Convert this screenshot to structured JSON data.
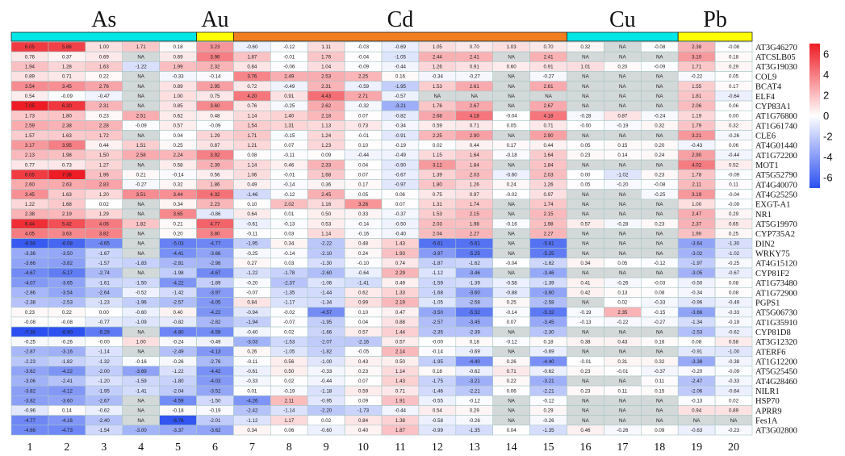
{
  "chart_data": {
    "type": "heatmap",
    "groups": [
      {
        "name": "As",
        "columns": [
          1,
          5
        ],
        "color": "#00e5e5"
      },
      {
        "name": "Au",
        "columns": [
          6,
          6
        ],
        "color": "#ffff00"
      },
      {
        "name": "Cd",
        "columns": [
          7,
          15
        ],
        "color": "#f07d1f"
      },
      {
        "name": "Cu",
        "columns": [
          16,
          18
        ],
        "color": "#00e5e5"
      },
      {
        "name": "Pb",
        "columns": [
          19,
          20
        ],
        "color": "#ffff00"
      }
    ],
    "columns": [
      "1",
      "2",
      "3",
      "4",
      "5",
      "6",
      "7",
      "8",
      "9",
      "10",
      "11",
      "12",
      "13",
      "14",
      "15",
      "16",
      "17",
      "18",
      "19",
      "20"
    ],
    "rows": [
      "AT3G46270",
      "ATCSLB05",
      "AT3G19030",
      "COL9",
      "BCAT4",
      "ELF4",
      "CYP83A1",
      "AT1G76800",
      "AT1G61740",
      "CLE6",
      "AT4G01440",
      "AT1G72200",
      "MOT1",
      "AT5G52790",
      "AT4G40070",
      "AT4G25250",
      "EXGT-A1",
      "NR1",
      "AT5G19970",
      "CYP735A2",
      "DIN2",
      "WRKY75",
      "AT4G15120",
      "CYP81F2",
      "AT1G73480",
      "AT1G72900",
      "PGPS1",
      "AT5G06730",
      "AT1G35910",
      "CYP81D8",
      "AT3G12320",
      "ATERF6",
      "AT1G12200",
      "AT5G25450",
      "AT4G28460",
      "NILR1",
      "HSP70",
      "APRR9",
      "Fes1A",
      "AT3G02800"
    ],
    "values": [
      [
        "6.05",
        "5.86",
        "1.00",
        "1.71",
        "0.18",
        "3.23",
        "-0.60",
        "-0.12",
        "1.11",
        "-0.03",
        "-0.69",
        "1.05",
        "0.70",
        "1.03",
        "0.70",
        "0.32",
        "NA",
        "-0.08",
        "2.38",
        "-0.08"
      ],
      [
        "0.76",
        "0.37",
        "0.69",
        "NA",
        "0.69",
        "3.96",
        "1.87",
        "-0.01",
        "1.76",
        "-0.04",
        "-1.05",
        "2.44",
        "2.41",
        "NA",
        "2.41",
        "NA",
        "NA",
        "NA",
        "3.10",
        "0.18"
      ],
      [
        "1.94",
        "1.28",
        "1.63",
        "-1.22",
        "1.99",
        "2.32",
        "0.84",
        "-0.06",
        "1.04",
        "-0.09",
        "-0.44",
        "1.26",
        "0.91",
        "0.60",
        "0.91",
        "1.01",
        "0.20",
        "-0.09",
        "1.71",
        "0.29"
      ],
      [
        "0.89",
        "0.71",
        "0.22",
        "NA",
        "-0.33",
        "-0.14",
        "3.76",
        "2.49",
        "2.53",
        "2.25",
        "0.16",
        "-0.34",
        "-0.27",
        "NA",
        "-0.27",
        "NA",
        "NA",
        "NA",
        "-0.22",
        "0.05"
      ],
      [
        "3.54",
        "3.45",
        "2.76",
        "NA",
        "0.89",
        "2.95",
        "0.72",
        "-0.49",
        "2.31",
        "-0.59",
        "-1.95",
        "1.53",
        "2.61",
        "NA",
        "2.61",
        "NA",
        "NA",
        "NA",
        "1.55",
        "0.17"
      ],
      [
        "0.54",
        "-0.09",
        "-0.47",
        "NA",
        "1.00",
        "0.75",
        "4.20",
        "0.91",
        "4.43",
        "2.71",
        "-0.57",
        "NA",
        "NA",
        "NA",
        "NA",
        "NA",
        "NA",
        "NA",
        "1.81",
        "-0.64"
      ],
      [
        "7.05",
        "6.20",
        "2.31",
        "NA",
        "0.85",
        "3.60",
        "0.76",
        "-0.25",
        "2.62",
        "-0.32",
        "-3.21",
        "1.76",
        "2.67",
        "NA",
        "2.67",
        "NA",
        "NA",
        "NA",
        "2.06",
        "0.06"
      ],
      [
        "1.73",
        "1.80",
        "0.23",
        "2.51",
        "0.62",
        "0.48",
        "1.14",
        "1.40",
        "2.18",
        "0.07",
        "-0.82",
        "2.68",
        "4.18",
        "-0.04",
        "4.18",
        "-0.28",
        "0.87",
        "-0.24",
        "1.19",
        "0.00"
      ],
      [
        "2.59",
        "2.38",
        "2.28",
        "-0.09",
        "0.57",
        "-0.09",
        "1.54",
        "1.31",
        "1.13",
        "0.73",
        "-0.34",
        "0.59",
        "0.71",
        "0.05",
        "0.71",
        "-0.00",
        "-0.19",
        "0.32",
        "1.79",
        "0.32"
      ],
      [
        "1.57",
        "1.63",
        "1.72",
        "NA",
        "0.04",
        "1.29",
        "1.71",
        "-0.15",
        "1.24",
        "-0.01",
        "-0.91",
        "2.25",
        "2.90",
        "NA",
        "2.90",
        "NA",
        "NA",
        "NA",
        "3.21",
        "-0.26"
      ],
      [
        "3.17",
        "3.95",
        "0.44",
        "1.51",
        "0.25",
        "0.87",
        "1.21",
        "0.07",
        "1.23",
        "0.10",
        "-0.19",
        "0.02",
        "0.44",
        "0.17",
        "0.44",
        "0.05",
        "0.15",
        "0.20",
        "-0.43",
        "0.06"
      ],
      [
        "2.13",
        "1.98",
        "1.50",
        "2.58",
        "2.24",
        "3.92",
        "0.08",
        "-0.11",
        "0.09",
        "-0.44",
        "-0.49",
        "1.15",
        "1.64",
        "-0.18",
        "1.64",
        "0.23",
        "0.14",
        "0.24",
        "2.90",
        "-0.44"
      ],
      [
        "0.77",
        "0.73",
        "1.27",
        "NA",
        "0.58",
        "2.39",
        "1.14",
        "0.46",
        "2.33",
        "0.04",
        "-0.90",
        "3.12",
        "1.84",
        "NA",
        "1.84",
        "NA",
        "NA",
        "NA",
        "4.02",
        "0.52"
      ],
      [
        "6.05",
        "7.36",
        "1.96",
        "0.21",
        "-0.14",
        "0.56",
        "1.06",
        "-0.01",
        "1.68",
        "0.07",
        "-0.67",
        "1.39",
        "2.03",
        "-0.60",
        "2.03",
        "0.00",
        "-1.02",
        "0.23",
        "1.78",
        "-0.09"
      ],
      [
        "2.60",
        "2.63",
        "2.83",
        "-0.27",
        "0.32",
        "1.86",
        "0.49",
        "-0.14",
        "0.36",
        "0.17",
        "-0.97",
        "1.80",
        "1.26",
        "0.24",
        "1.26",
        "0.05",
        "-0.20",
        "-0.08",
        "2.11",
        "0.11"
      ],
      [
        "3.45",
        "1.63",
        "1.20",
        "3.51",
        "3.44",
        "4.32",
        "-1.46",
        "-0.12",
        "2.45",
        "0.05",
        "0.06",
        "0.75",
        "0.97",
        "-0.02",
        "0.97",
        "NA",
        "NA",
        "-0.25",
        "3.19",
        "-0.04"
      ],
      [
        "1.22",
        "1.68",
        "0.02",
        "NA",
        "0.34",
        "2.23",
        "0.10",
        "2.02",
        "1.16",
        "3.26",
        "0.07",
        "1.31",
        "1.74",
        "NA",
        "1.74",
        "NA",
        "NA",
        "NA",
        "1.00",
        "-0.09"
      ],
      [
        "2.38",
        "2.19",
        "1.29",
        "NA",
        "3.65",
        "-0.86",
        "0.64",
        "0.01",
        "0.50",
        "0.33",
        "-0.37",
        "1.53",
        "2.15",
        "NA",
        "2.15",
        "NA",
        "NA",
        "NA",
        "2.47",
        "0.29"
      ],
      [
        "6.44",
        "5.42",
        "4.06",
        "1.82",
        "0.21",
        "4.77",
        "-0.61",
        "-0.13",
        "0.53",
        "-0.14",
        "-0.50",
        "2.03",
        "1.98",
        "-0.16",
        "1.98",
        "0.57",
        "-0.28",
        "0.23",
        "2.37",
        "0.65"
      ],
      [
        "4.05",
        "3.63",
        "3.82",
        "NA",
        "0.20",
        "3.80",
        "-0.11",
        "0.03",
        "1.14",
        "-0.16",
        "-0.40",
        "2.04",
        "2.27",
        "NA",
        "2.27",
        "NA",
        "NA",
        "NA",
        "1.90",
        "0.25"
      ],
      [
        "-6.56",
        "-6.08",
        "-4.65",
        "NA",
        "-5.03",
        "-4.77",
        "-1.95",
        "0.34",
        "-2.22",
        "0.48",
        "1.43",
        "-5.61",
        "-5.61",
        "NA",
        "-5.61",
        "NA",
        "NA",
        "NA",
        "-3.64",
        "-1.30"
      ],
      [
        "-3.36",
        "-3.50",
        "-1.67",
        "NA",
        "-4.41",
        "-3.66",
        "-0.25",
        "-0.14",
        "-2.10",
        "0.24",
        "1.93",
        "-3.97",
        "-5.25",
        "NA",
        "-5.25",
        "NA",
        "NA",
        "NA",
        "-3.02",
        "-1.02"
      ],
      [
        "-3.66",
        "-3.82",
        "-1.57",
        "-1.83",
        "-2.81",
        "-2.98",
        "0.27",
        "0.03",
        "-1.30",
        "-0.10",
        "0.74",
        "-1.87",
        "-1.62",
        "-0.04",
        "-1.62",
        "0.34",
        "0.05",
        "-0.12",
        "-1.97",
        "-0.25"
      ],
      [
        "-4.67",
        "-5.17",
        "-2.74",
        "NA",
        "-1.98",
        "-4.67",
        "-1.22",
        "-1.78",
        "-2.60",
        "-0.64",
        "2.29",
        "-1.12",
        "-3.46",
        "NA",
        "-3.46",
        "NA",
        "NA",
        "NA",
        "-3.05",
        "-0.67"
      ],
      [
        "-4.07",
        "-3.65",
        "-1.61",
        "-1.50",
        "-4.22",
        "-1.89",
        "-0.20",
        "-2.37",
        "-1.06",
        "-1.41",
        "0.49",
        "-1.59",
        "-1.39",
        "-0.58",
        "-1.39",
        "0.41",
        "-0.26",
        "-0.03",
        "-0.50",
        "0.08"
      ],
      [
        "-2.86",
        "-3.54",
        "-2.64",
        "-0.52",
        "-1.42",
        "-3.97",
        "-0.07",
        "-1.35",
        "-1.44",
        "0.62",
        "1.33",
        "-1.68",
        "-3.60",
        "-0.88",
        "-3.60",
        "0.42",
        "0.13",
        "0.08",
        "-0.34",
        "0.08"
      ],
      [
        "-2.38",
        "-2.53",
        "-1.23",
        "-1.96",
        "-2.57",
        "-4.05",
        "0.84",
        "-1.17",
        "-1.34",
        "0.99",
        "2.19",
        "-1.05",
        "-2.58",
        "0.25",
        "-2.58",
        "NA",
        "0.02",
        "-0.33",
        "-0.96",
        "-0.49"
      ],
      [
        "0.23",
        "0.22",
        "0.00",
        "-0.60",
        "0.40",
        "-4.22",
        "-0.94",
        "-0.02",
        "-4.57",
        "0.10",
        "0.47",
        "-3.50",
        "-5.32",
        "-0.14",
        "-5.32",
        "-0.19",
        "2.35",
        "-0.15",
        "-3.66",
        "-0.33"
      ],
      [
        "-0.08",
        "-0.08",
        "-0.77",
        "-1.09",
        "-0.82",
        "-2.82",
        "-1.94",
        "-0.07",
        "-1.95",
        "0.04",
        "0.88",
        "-2.57",
        "-3.45",
        "0.07",
        "-3.45",
        "-0.13",
        "-0.22",
        "-0.27",
        "-1.34",
        "-0.19"
      ],
      [
        "-7.36",
        "-6.90",
        "-5.29",
        "NA",
        "-4.80",
        "-4.59",
        "-0.40",
        "0.02",
        "-1.66",
        "0.57",
        "1.44",
        "-2.35",
        "-2.39",
        "NA",
        "-2.30",
        "NA",
        "NA",
        "NA",
        "-2.53",
        "-0.62"
      ],
      [
        "-0.25",
        "-0.26",
        "-0.00",
        "1.00",
        "-0.24",
        "-0.49",
        "-3.03",
        "-1.53",
        "-2.07",
        "-2.16",
        "0.57",
        "-0.00",
        "0.18",
        "-0.12",
        "0.18",
        "0.38",
        "0.43",
        "0.16",
        "0.08",
        "0.58"
      ],
      [
        "-2.87",
        "-3.16",
        "-1.14",
        "NA",
        "-2.49",
        "-4.13",
        "0.26",
        "-1.05",
        "-1.82",
        "-0.05",
        "2.14",
        "-0.14",
        "-0.69",
        "NA",
        "-0.69",
        "NA",
        "NA",
        "NA",
        "-0.91",
        "-1.00"
      ],
      [
        "-2.23",
        "-1.82",
        "-1.32",
        "-0.16",
        "-0.26",
        "-2.76",
        "-0.11",
        "0.56",
        "-1.00",
        "0.43",
        "0.50",
        "-1.95",
        "-4.40",
        "0.26",
        "-4.40",
        "-0.01",
        "0.31",
        "0.32",
        "-3.38",
        "-0.38"
      ],
      [
        "-3.62",
        "-4.22",
        "-2.00",
        "-3.69",
        "-1.22",
        "-4.42",
        "-0.61",
        "0.50",
        "-0.33",
        "0.23",
        "1.14",
        "0.18",
        "-0.62",
        "0.71",
        "-0.62",
        "0.23",
        "-0.01",
        "-0.37",
        "-0.20",
        "-0.09"
      ],
      [
        "-3.06",
        "-2.41",
        "-1.20",
        "-1.59",
        "-1.80",
        "-4.03",
        "-0.33",
        "0.02",
        "-0.44",
        "0.07",
        "1.43",
        "-1.75",
        "-3.21",
        "0.22",
        "-3.21",
        "NA",
        "NA",
        "0.11",
        "-2.47",
        "-0.33"
      ],
      [
        "-3.82",
        "-4.12",
        "-1.95",
        "-1.41",
        "-2.04",
        "-3.52",
        "0.01",
        "-0.19",
        "-1.18",
        "0.59",
        "0.71",
        "-1.46",
        "-2.21",
        "0.06",
        "-2.21",
        "0.23",
        "0.11",
        "0.15",
        "-2.06",
        "-0.64"
      ],
      [
        "-3.82",
        "-3.60",
        "-2.67",
        "NA",
        "-4.59",
        "-1.50",
        "-4.26",
        "2.11",
        "-0.95",
        "0.09",
        "1.91",
        "-0.55",
        "-0.12",
        "NA",
        "-0.12",
        "NA",
        "NA",
        "NA",
        "-0.13",
        "0.02"
      ],
      [
        "-0.96",
        "0.14",
        "-0.62",
        "NA",
        "-0.18",
        "-0.19",
        "-2.42",
        "-1.14",
        "-2.20",
        "-1.73",
        "-0.44",
        "0.54",
        "0.29",
        "NA",
        "0.29",
        "NA",
        "NA",
        "NA",
        "0.94",
        "0.89"
      ],
      [
        "-4.77",
        "-4.16",
        "-2.40",
        "NA",
        "-6.76",
        "-2.01",
        "-1.12",
        "1.17",
        "0.02",
        "0.84",
        "1.38",
        "-0.58",
        "-0.26",
        "NA",
        "-0.26",
        "NA",
        "NA",
        "NA",
        "NA",
        "NA"
      ],
      [
        "-4.66",
        "-4.73",
        "-1.54",
        "-3.00",
        "-3.37",
        "-3.62",
        "0.34",
        "0.06",
        "-0.60",
        "0.40",
        "1.87",
        "-0.99",
        "-1.35",
        "0.04",
        "-1.35",
        "0.46",
        "-0.26",
        "0.09",
        "-0.63",
        "-0.23"
      ]
    ],
    "colorbar": {
      "min": -7,
      "max": 7,
      "ticks": [
        "6",
        "4",
        "2",
        "0",
        "-2",
        "-4",
        "-6"
      ],
      "low_color": "#2b4ff0",
      "mid_color": "#ffffff",
      "high_color": "#ee1c25"
    },
    "na_color": "#d3d8d8",
    "grid_color": "#a9c7c7"
  }
}
